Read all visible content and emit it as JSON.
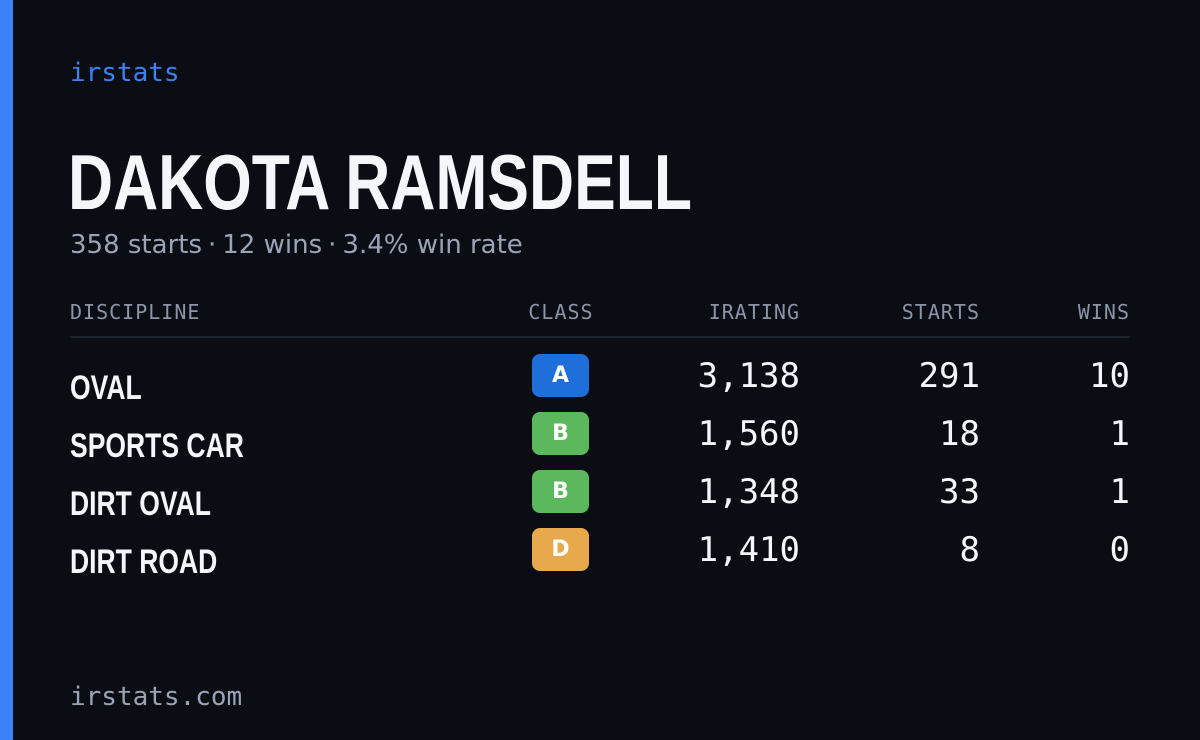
{
  "brand": "irstats",
  "driver": {
    "name": "DAKOTA RAMSDELL",
    "starts": "358 starts",
    "wins": "12 wins",
    "win_rate": "3.4% win rate",
    "separator": "·"
  },
  "table": {
    "headers": {
      "discipline": "DISCIPLINE",
      "class": "CLASS",
      "irating": "IRATING",
      "starts": "STARTS",
      "wins": "WINS"
    },
    "rows": [
      {
        "discipline": "OVAL",
        "class": "A",
        "class_color": "#1e6fd9",
        "irating": "3,138",
        "starts": "291",
        "wins": "10"
      },
      {
        "discipline": "SPORTS CAR",
        "class": "B",
        "class_color": "#5cb85c",
        "irating": "1,560",
        "starts": "18",
        "wins": "1"
      },
      {
        "discipline": "DIRT OVAL",
        "class": "B",
        "class_color": "#5cb85c",
        "irating": "1,348",
        "starts": "33",
        "wins": "1"
      },
      {
        "discipline": "DIRT ROAD",
        "class": "D",
        "class_color": "#e8a94c",
        "irating": "1,410",
        "starts": "8",
        "wins": "0"
      }
    ]
  },
  "footer": "irstats.com",
  "colors": {
    "accent": "#3b82f6",
    "background": "#0a0d14"
  }
}
